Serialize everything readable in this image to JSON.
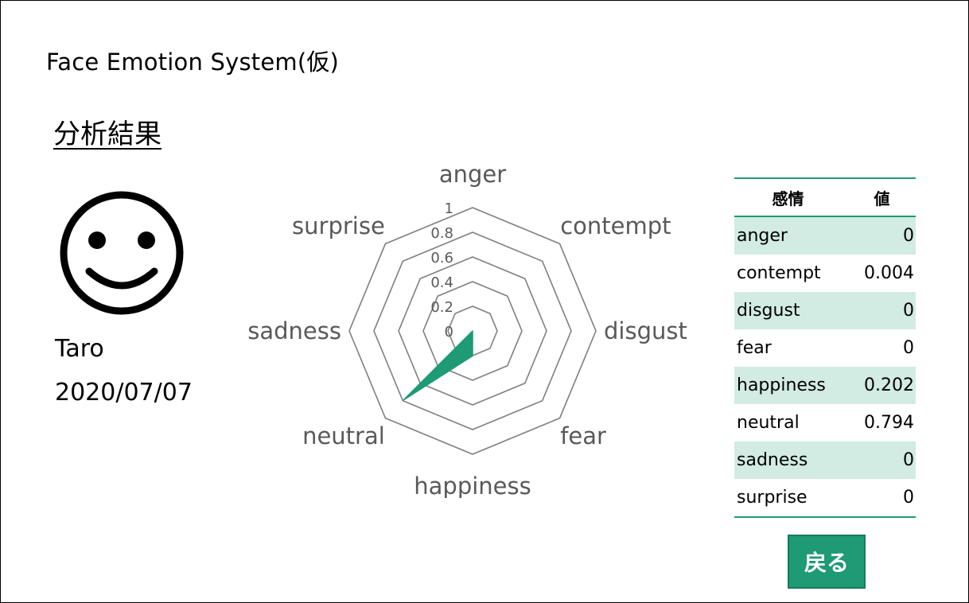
{
  "app": {
    "title": "Face Emotion System(仮)"
  },
  "section": {
    "title": "分析結果"
  },
  "user": {
    "name": "Taro",
    "date": "2020/07/07",
    "face_icon": "smiley-face-icon"
  },
  "chart_data": {
    "type": "radar",
    "categories": [
      "anger",
      "contempt",
      "disgust",
      "fear",
      "happiness",
      "neutral",
      "sadness",
      "surprise"
    ],
    "values": [
      0,
      0.004,
      0,
      0,
      0.202,
      0.794,
      0,
      0
    ],
    "ticks": [
      "0",
      "0.2",
      "0.4",
      "0.6",
      "0.8",
      "1"
    ],
    "range": [
      0,
      1
    ],
    "color": "#1e9a74",
    "grid_color": "#7f7f7f"
  },
  "table": {
    "headers": [
      "感情",
      "値"
    ],
    "rows": [
      {
        "label": "anger",
        "value": "0"
      },
      {
        "label": "contempt",
        "value": "0.004"
      },
      {
        "label": "disgust",
        "value": "0"
      },
      {
        "label": "fear",
        "value": "0"
      },
      {
        "label": "happiness",
        "value": "0.202"
      },
      {
        "label": "neutral",
        "value": "0.794"
      },
      {
        "label": "sadness",
        "value": "0"
      },
      {
        "label": "surprise",
        "value": "0"
      }
    ]
  },
  "back_button": {
    "label": "戻る"
  },
  "colors": {
    "accent": "#1e9a74",
    "row_shade": "#d2ebe3"
  }
}
